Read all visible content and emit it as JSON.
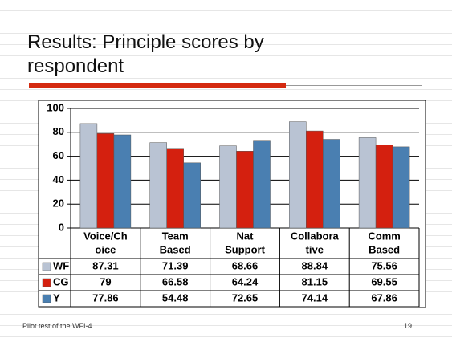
{
  "chart_data": {
    "type": "bar",
    "title": "Results: Principle scores by respondent",
    "categories": [
      [
        "Voice/Ch",
        "oice"
      ],
      [
        "Team",
        "Based"
      ],
      [
        "Nat",
        "Support"
      ],
      [
        "Collabora",
        "tive"
      ],
      [
        "Comm",
        "Based"
      ]
    ],
    "series": [
      {
        "name": "WF",
        "color": "#b9c3d3",
        "values": [
          87.31,
          71.39,
          68.66,
          88.84,
          75.56
        ]
      },
      {
        "name": "CG",
        "color": "#d4200f",
        "values": [
          79,
          66.58,
          64.24,
          81.15,
          69.55
        ]
      },
      {
        "name": "Y",
        "color": "#4a7fb1",
        "values": [
          77.86,
          54.48,
          72.65,
          74.14,
          67.86
        ]
      }
    ],
    "ylim": [
      0,
      100
    ],
    "yticks": [
      0,
      20,
      40,
      60,
      80,
      100
    ],
    "grid": true
  },
  "footer": "Pilot test of the WFI-4",
  "page_number": 19
}
